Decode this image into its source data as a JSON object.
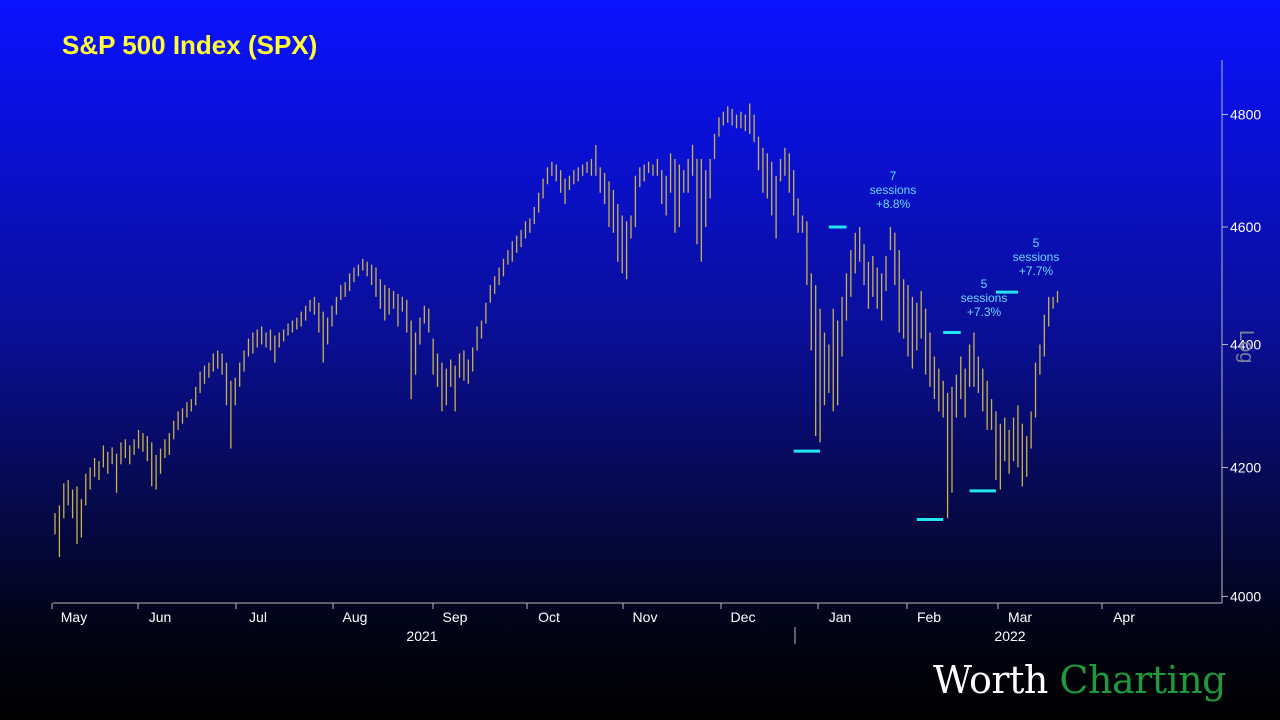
{
  "chart_data": {
    "type": "ohlc",
    "title": "S&P 500 Index (SPX)",
    "ylabel": "Log",
    "yscale": "log",
    "ylim": [
      3990,
      4900
    ],
    "yticks": [
      4000,
      4200,
      4400,
      4600,
      4800
    ],
    "x_months": [
      "May",
      "Jun",
      "Jul",
      "Aug",
      "Sep",
      "Oct",
      "Nov",
      "Dec",
      "Jan",
      "Feb",
      "Mar",
      "Apr"
    ],
    "x_years": [
      "2021",
      "2022"
    ],
    "grid": false,
    "series": [
      {
        "values": [
          [
            4128,
            4095
          ],
          [
            4140,
            4060
          ],
          [
            4175,
            4120
          ],
          [
            4180,
            4140
          ],
          [
            4165,
            4120
          ],
          [
            4170,
            4080
          ],
          [
            4150,
            4090
          ],
          [
            4190,
            4140
          ],
          [
            4200,
            4165
          ],
          [
            4215,
            4185
          ],
          [
            4210,
            4180
          ],
          [
            4235,
            4200
          ],
          [
            4225,
            4190
          ],
          [
            4232,
            4205
          ],
          [
            4222,
            4160
          ],
          [
            4240,
            4205
          ],
          [
            4245,
            4215
          ],
          [
            4235,
            4205
          ],
          [
            4245,
            4220
          ],
          [
            4260,
            4230
          ],
          [
            4255,
            4225
          ],
          [
            4250,
            4210
          ],
          [
            4240,
            4170
          ],
          [
            4220,
            4165
          ],
          [
            4230,
            4190
          ],
          [
            4245,
            4215
          ],
          [
            4255,
            4220
          ],
          [
            4275,
            4245
          ],
          [
            4290,
            4260
          ],
          [
            4295,
            4270
          ],
          [
            4305,
            4280
          ],
          [
            4310,
            4290
          ],
          [
            4330,
            4300
          ],
          [
            4355,
            4320
          ],
          [
            4365,
            4335
          ],
          [
            4370,
            4345
          ],
          [
            4385,
            4355
          ],
          [
            4390,
            4360
          ],
          [
            4385,
            4350
          ],
          [
            4370,
            4300
          ],
          [
            4340,
            4230
          ],
          [
            4345,
            4300
          ],
          [
            4370,
            4330
          ],
          [
            4390,
            4355
          ],
          [
            4410,
            4380
          ],
          [
            4420,
            4385
          ],
          [
            4425,
            4395
          ],
          [
            4430,
            4400
          ],
          [
            4420,
            4395
          ],
          [
            4425,
            4390
          ],
          [
            4415,
            4370
          ],
          [
            4420,
            4395
          ],
          [
            4425,
            4405
          ],
          [
            4435,
            4415
          ],
          [
            4440,
            4420
          ],
          [
            4445,
            4425
          ],
          [
            4455,
            4430
          ],
          [
            4465,
            4440
          ],
          [
            4475,
            4455
          ],
          [
            4480,
            4450
          ],
          [
            4470,
            4420
          ],
          [
            4455,
            4370
          ],
          [
            4445,
            4400
          ],
          [
            4465,
            4430
          ],
          [
            4480,
            4450
          ],
          [
            4500,
            4475
          ],
          [
            4505,
            4480
          ],
          [
            4520,
            4490
          ],
          [
            4530,
            4505
          ],
          [
            4535,
            4515
          ],
          [
            4545,
            4525
          ],
          [
            4540,
            4515
          ],
          [
            4535,
            4500
          ],
          [
            4530,
            4480
          ],
          [
            4510,
            4460
          ],
          [
            4500,
            4440
          ],
          [
            4495,
            4450
          ],
          [
            4490,
            4460
          ],
          [
            4485,
            4430
          ],
          [
            4480,
            4455
          ],
          [
            4475,
            4420
          ],
          [
            4440,
            4310
          ],
          [
            4420,
            4350
          ],
          [
            4445,
            4400
          ],
          [
            4465,
            4435
          ],
          [
            4460,
            4420
          ],
          [
            4410,
            4350
          ],
          [
            4385,
            4330
          ],
          [
            4370,
            4290
          ],
          [
            4360,
            4300
          ],
          [
            4375,
            4330
          ],
          [
            4365,
            4290
          ],
          [
            4385,
            4345
          ],
          [
            4390,
            4340
          ],
          [
            4375,
            4335
          ],
          [
            4395,
            4355
          ],
          [
            4430,
            4390
          ],
          [
            4440,
            4410
          ],
          [
            4470,
            4435
          ],
          [
            4500,
            4470
          ],
          [
            4515,
            4485
          ],
          [
            4530,
            4500
          ],
          [
            4545,
            4515
          ],
          [
            4560,
            4535
          ],
          [
            4575,
            4540
          ],
          [
            4585,
            4555
          ],
          [
            4595,
            4565
          ],
          [
            4610,
            4580
          ],
          [
            4615,
            4590
          ],
          [
            4635,
            4605
          ],
          [
            4660,
            4625
          ],
          [
            4685,
            4650
          ],
          [
            4705,
            4675
          ],
          [
            4715,
            4690
          ],
          [
            4710,
            4680
          ],
          [
            4700,
            4660
          ],
          [
            4685,
            4640
          ],
          [
            4690,
            4665
          ],
          [
            4700,
            4675
          ],
          [
            4705,
            4680
          ],
          [
            4710,
            4690
          ],
          [
            4715,
            4695
          ],
          [
            4720,
            4690
          ],
          [
            4745,
            4690
          ],
          [
            4705,
            4660
          ],
          [
            4695,
            4640
          ],
          [
            4680,
            4600
          ],
          [
            4665,
            4590
          ],
          [
            4640,
            4540
          ],
          [
            4620,
            4520
          ],
          [
            4610,
            4510
          ],
          [
            4620,
            4580
          ],
          [
            4690,
            4600
          ],
          [
            4705,
            4670
          ],
          [
            4710,
            4680
          ],
          [
            4715,
            4695
          ],
          [
            4710,
            4690
          ],
          [
            4720,
            4690
          ],
          [
            4700,
            4640
          ],
          [
            4690,
            4620
          ],
          [
            4730,
            4660
          ],
          [
            4720,
            4590
          ],
          [
            4710,
            4600
          ],
          [
            4700,
            4660
          ],
          [
            4720,
            4660
          ],
          [
            4745,
            4690
          ],
          [
            4720,
            4570
          ],
          [
            4720,
            4540
          ],
          [
            4700,
            4600
          ],
          [
            4720,
            4650
          ],
          [
            4765,
            4720
          ],
          [
            4795,
            4760
          ],
          [
            4805,
            4780
          ],
          [
            4815,
            4785
          ],
          [
            4810,
            4780
          ],
          [
            4800,
            4775
          ],
          [
            4805,
            4775
          ],
          [
            4800,
            4770
          ],
          [
            4820,
            4765
          ],
          [
            4800,
            4750
          ],
          [
            4760,
            4700
          ],
          [
            4740,
            4660
          ],
          [
            4730,
            4650
          ],
          [
            4715,
            4620
          ],
          [
            4690,
            4580
          ],
          [
            4720,
            4680
          ],
          [
            4740,
            4690
          ],
          [
            4730,
            4660
          ],
          [
            4700,
            4620
          ],
          [
            4650,
            4590
          ],
          [
            4620,
            4590
          ],
          [
            4610,
            4500
          ],
          [
            4520,
            4390
          ],
          [
            4500,
            4250
          ],
          [
            4460,
            4240
          ],
          [
            4420,
            4300
          ],
          [
            4400,
            4320
          ],
          [
            4460,
            4290
          ],
          [
            4440,
            4300
          ],
          [
            4480,
            4380
          ],
          [
            4520,
            4440
          ],
          [
            4560,
            4480
          ],
          [
            4590,
            4520
          ],
          [
            4600,
            4540
          ],
          [
            4570,
            4500
          ],
          [
            4540,
            4460
          ],
          [
            4550,
            4480
          ],
          [
            4530,
            4460
          ],
          [
            4520,
            4440
          ],
          [
            4550,
            4490
          ],
          [
            4600,
            4560
          ],
          [
            4590,
            4500
          ],
          [
            4560,
            4420
          ],
          [
            4510,
            4410
          ],
          [
            4500,
            4380
          ],
          [
            4480,
            4360
          ],
          [
            4470,
            4390
          ],
          [
            4490,
            4410
          ],
          [
            4460,
            4350
          ],
          [
            4420,
            4330
          ],
          [
            4380,
            4310
          ],
          [
            4360,
            4290
          ],
          [
            4340,
            4280
          ],
          [
            4320,
            4120
          ],
          [
            4330,
            4160
          ],
          [
            4350,
            4280
          ],
          [
            4380,
            4310
          ],
          [
            4360,
            4280
          ],
          [
            4400,
            4330
          ],
          [
            4420,
            4330
          ],
          [
            4380,
            4320
          ],
          [
            4360,
            4290
          ],
          [
            4340,
            4260
          ],
          [
            4310,
            4260
          ],
          [
            4290,
            4180
          ],
          [
            4270,
            4165
          ],
          [
            4280,
            4210
          ],
          [
            4260,
            4190
          ],
          [
            4280,
            4210
          ],
          [
            4300,
            4200
          ],
          [
            4270,
            4170
          ],
          [
            4250,
            4185
          ],
          [
            4290,
            4230
          ],
          [
            4370,
            4280
          ],
          [
            4400,
            4350
          ],
          [
            4450,
            4380
          ],
          [
            4480,
            4430
          ],
          [
            4480,
            4460
          ],
          [
            4490,
            4470
          ]
        ]
      }
    ],
    "annotations": [
      {
        "text": [
          "7",
          "sessions",
          "+8.8%"
        ]
      },
      {
        "text": [
          "5",
          "sessions",
          "+7.3%"
        ]
      },
      {
        "text": [
          "5",
          "sessions",
          "+7.7%"
        ]
      }
    ],
    "levels": [
      {
        "start_index": 168,
        "end_index": 174,
        "value": 4226
      },
      {
        "start_index": 176,
        "end_index": 180,
        "value": 4600
      },
      {
        "start_index": 196,
        "end_index": 202,
        "value": 4118
      },
      {
        "start_index": 202,
        "end_index": 206,
        "value": 4420
      },
      {
        "start_index": 208,
        "end_index": 214,
        "value": 4163
      },
      {
        "start_index": 214,
        "end_index": 219,
        "value": 4488
      }
    ],
    "colors": {
      "bars": "#c9b24a",
      "levels": "#22e5f0",
      "annotation_text": "#69d8ff",
      "axis": "#b8b8b8",
      "title": "#ffff33"
    }
  },
  "brand": {
    "word1": "Worth",
    "word2": "Charting"
  }
}
